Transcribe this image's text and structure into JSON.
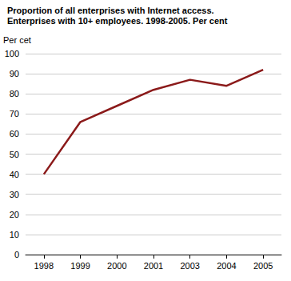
{
  "chart_data": {
    "type": "line",
    "title": "Proportion of all enterprises with Internet access.",
    "subtitle": "Enterprises with 10+ employees. 1998-2005. Per cent",
    "y_label": "Per cet",
    "categories": [
      "1998",
      "1999",
      "2000",
      "2001",
      "2003",
      "2004",
      "2005"
    ],
    "values": [
      40,
      66,
      74,
      82,
      87,
      84,
      92
    ],
    "color": "#8b1a1a",
    "ylim": [
      0,
      100
    ],
    "yticks": [
      0,
      10,
      20,
      30,
      40,
      50,
      60,
      70,
      80,
      90,
      100
    ],
    "grid": true
  }
}
